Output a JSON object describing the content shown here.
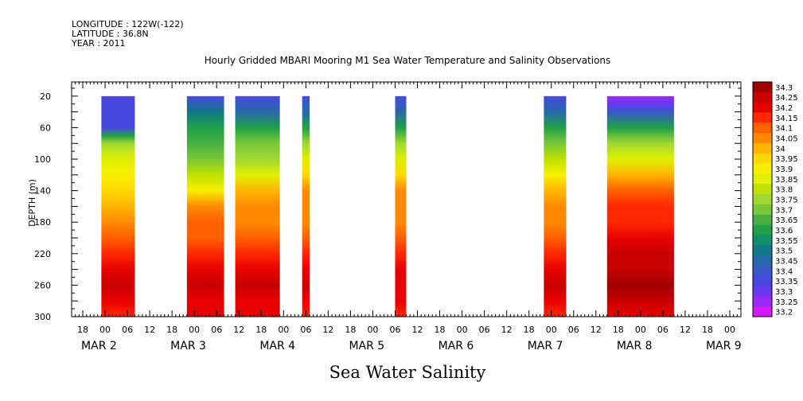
{
  "header": {
    "longitude": "LONGITUDE : 122W(-122)",
    "latitude": "LATITUDE : 36.8N",
    "year": "YEAR : 2011"
  },
  "chart_data": {
    "type": "heatmap",
    "title": "Hourly Gridded MBARI Mooring M1 Sea Water Temperature and Salinity Observations",
    "xlabel": "Sea Water Salinity",
    "ylabel": "DEPTH (m)",
    "y_ticks": [
      20,
      60,
      100,
      140,
      180,
      220,
      260,
      300
    ],
    "ylim": [
      300,
      2
    ],
    "x_start_hours": -9,
    "x_end_hours": 171,
    "x_hour_ticks": [
      "18",
      "00",
      "06",
      "12",
      "18",
      "00",
      "06",
      "12",
      "18",
      "00",
      "06",
      "12",
      "18",
      "00",
      "06",
      "12",
      "18",
      "00",
      "06",
      "12",
      "18",
      "00",
      "06",
      "12",
      "18",
      "00",
      "06",
      "12",
      "18",
      "00",
      "06",
      "12"
    ],
    "x_day_labels": [
      "MAR  2",
      "MAR  3",
      "MAR  4",
      "MAR  5",
      "MAR  6",
      "MAR  7",
      "MAR  8",
      "MAR  9"
    ],
    "colorbar": {
      "levels": [
        "34.3",
        "34.25",
        "34.2",
        "34.15",
        "34.1",
        "34.05",
        "34",
        "33.95",
        "33.9",
        "33.85",
        "33.8",
        "33.75",
        "33.7",
        "33.65",
        "33.6",
        "33.55",
        "33.5",
        "33.45",
        "33.4",
        "33.35",
        "33.3",
        "33.25",
        "33.2"
      ],
      "colors": [
        "#a00000",
        "#c80000",
        "#e80000",
        "#ff2800",
        "#ff6000",
        "#ff8a00",
        "#ffb400",
        "#ffd800",
        "#f8f000",
        "#e0f000",
        "#c0e000",
        "#a0d830",
        "#78c838",
        "#48b040",
        "#20a048",
        "#10906a",
        "#107888",
        "#2868a8",
        "#3858c8",
        "#4848e0",
        "#6838f0",
        "#9c28f8",
        "#d418f8"
      ]
    },
    "series": [
      {
        "start_hour": -1,
        "end_hour": 8,
        "profile_depths": [
          20,
          60,
          70,
          80,
          100,
          120,
          140,
          160,
          180,
          200,
          220,
          240,
          260,
          280,
          300
        ],
        "salinity": [
          33.35,
          33.35,
          33.6,
          33.75,
          33.85,
          33.9,
          33.95,
          34.0,
          34.05,
          34.1,
          34.15,
          34.2,
          34.25,
          34.2,
          34.15
        ]
      },
      {
        "start_hour": 22,
        "end_hour": 32,
        "profile_depths": [
          20,
          40,
          60,
          80,
          100,
          120,
          140,
          160,
          180,
          200,
          220,
          240,
          260,
          280,
          300
        ],
        "salinity": [
          33.35,
          33.5,
          33.6,
          33.65,
          33.7,
          33.8,
          33.9,
          34.05,
          34.1,
          34.1,
          34.15,
          34.2,
          34.25,
          34.2,
          34.2
        ]
      },
      {
        "start_hour": 35,
        "end_hour": 47,
        "profile_depths": [
          20,
          40,
          60,
          80,
          100,
          120,
          140,
          160,
          180,
          200,
          220,
          240,
          260,
          280,
          300
        ],
        "salinity": [
          33.35,
          33.45,
          33.6,
          33.7,
          33.75,
          33.85,
          34.0,
          34.05,
          34.05,
          34.1,
          34.15,
          34.2,
          34.25,
          34.2,
          34.2
        ]
      },
      {
        "start_hour": 53,
        "end_hour": 55,
        "profile_depths": [
          20,
          40,
          60,
          80,
          100,
          120,
          140,
          160,
          180,
          200,
          220,
          240,
          260,
          280,
          300
        ],
        "salinity": [
          33.35,
          33.45,
          33.6,
          33.75,
          33.85,
          33.95,
          34.05,
          34.05,
          34.05,
          34.1,
          34.15,
          34.2,
          34.25,
          34.2,
          34.15
        ]
      },
      {
        "start_hour": 78,
        "end_hour": 81,
        "profile_depths": [
          20,
          40,
          60,
          80,
          100,
          120,
          140,
          160,
          180,
          200,
          220,
          240,
          260,
          280,
          300
        ],
        "salinity": [
          33.35,
          33.45,
          33.6,
          33.75,
          33.85,
          33.95,
          34.05,
          34.05,
          34.05,
          34.1,
          34.15,
          34.2,
          34.2,
          34.2,
          34.15
        ]
      },
      {
        "start_hour": 118,
        "end_hour": 124,
        "profile_depths": [
          20,
          40,
          60,
          80,
          100,
          120,
          140,
          160,
          180,
          200,
          220,
          240,
          260,
          280,
          300
        ],
        "salinity": [
          33.35,
          33.45,
          33.6,
          33.7,
          33.8,
          33.9,
          34.0,
          34.05,
          34.05,
          34.1,
          34.15,
          34.2,
          34.25,
          34.2,
          34.15
        ]
      },
      {
        "start_hour": 135,
        "end_hour": 153,
        "profile_depths": [
          20,
          30,
          40,
          60,
          80,
          100,
          120,
          140,
          160,
          180,
          200,
          220,
          240,
          260,
          280,
          300
        ],
        "salinity": [
          33.25,
          33.3,
          33.4,
          33.6,
          33.75,
          33.85,
          34.0,
          34.1,
          34.15,
          34.15,
          34.2,
          34.25,
          34.25,
          34.3,
          34.25,
          34.2
        ]
      }
    ]
  }
}
